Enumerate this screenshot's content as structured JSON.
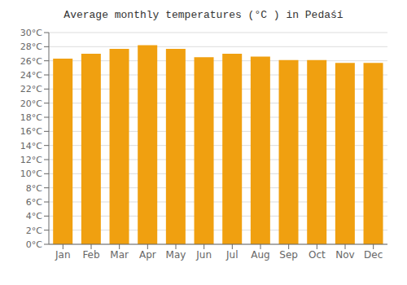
{
  "chart_data": {
    "type": "bar",
    "title": "Average monthly temperatures (°C ) in Pedaśí",
    "categories": [
      "Jan",
      "Feb",
      "Mar",
      "Apr",
      "May",
      "Jun",
      "Jul",
      "Aug",
      "Sep",
      "Oct",
      "Nov",
      "Dec"
    ],
    "values": [
      26.3,
      27.0,
      27.7,
      28.2,
      27.7,
      26.5,
      27.0,
      26.6,
      26.1,
      26.1,
      25.7,
      25.7
    ],
    "color": "#F0A010",
    "ylim": [
      0,
      30
    ],
    "yticks": [
      {
        "value": 0,
        "label": "0°C"
      },
      {
        "value": 2,
        "label": "2°C"
      },
      {
        "value": 4,
        "label": "4°C"
      },
      {
        "value": 6,
        "label": "6°C"
      },
      {
        "value": 8,
        "label": "8°C"
      },
      {
        "value": 10,
        "label": "10°C"
      },
      {
        "value": 12,
        "label": "12°C"
      },
      {
        "value": 14,
        "label": "14°C"
      },
      {
        "value": 16,
        "label": "16°C"
      },
      {
        "value": 18,
        "label": "18°C"
      },
      {
        "value": 20,
        "label": "20°C"
      },
      {
        "value": 22,
        "label": "22°C"
      },
      {
        "value": 24,
        "label": "24°C"
      },
      {
        "value": 26,
        "label": "26°C"
      },
      {
        "value": 28,
        "label": "28°C"
      },
      {
        "value": 30,
        "label": "30°C"
      }
    ],
    "grid": true
  }
}
